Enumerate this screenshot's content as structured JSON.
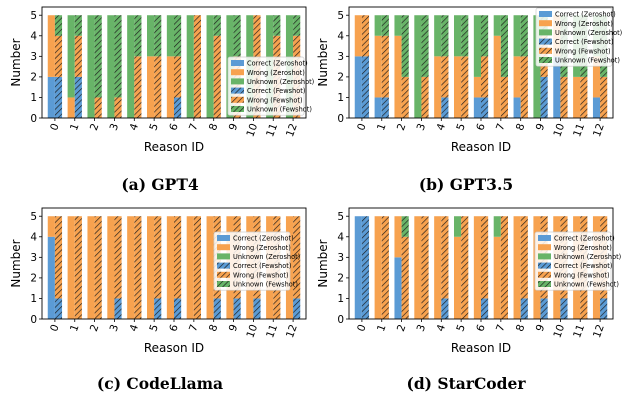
{
  "colors": {
    "correct": "#5b9bd5",
    "wrong": "#f7a24f",
    "unknown": "#68b468"
  },
  "chart_data": [
    {
      "type": "bar",
      "caption": "(a) GPT4",
      "xlabel": "Reason ID",
      "ylabel": "Number",
      "ylim": [
        0,
        5.4
      ],
      "yticks": [
        0,
        1,
        2,
        3,
        4,
        5
      ],
      "categories": [
        "0",
        "1",
        "2",
        "3",
        "4",
        "5",
        "6",
        "7",
        "8",
        "9",
        "10",
        "11",
        "12"
      ],
      "legend": [
        "Correct (Zeroshot)",
        "Wrong (Zeroshot)",
        "Unknown (Zeroshot)",
        "Correct (Fewshot)",
        "Wrong (Fewshot)",
        "Unknown (Fewshot)"
      ],
      "legend_position": "lower-right",
      "series": [
        {
          "name": "Correct (Zeroshot)",
          "values": [
            2,
            0,
            0,
            0,
            0,
            0,
            0,
            0,
            0,
            0,
            0,
            0,
            0
          ]
        },
        {
          "name": "Wrong (Zeroshot)",
          "values": [
            3,
            1,
            0,
            0,
            0,
            3,
            3,
            0,
            0,
            0,
            0,
            0,
            0
          ]
        },
        {
          "name": "Unknown (Zeroshot)",
          "values": [
            0,
            4,
            5,
            5,
            5,
            2,
            2,
            5,
            5,
            5,
            5,
            5,
            5
          ]
        },
        {
          "name": "Correct (Fewshot)",
          "values": [
            2,
            2,
            0,
            0,
            0,
            0,
            1,
            0,
            0,
            0,
            0,
            0,
            0
          ]
        },
        {
          "name": "Wrong (Fewshot)",
          "values": [
            2,
            2,
            1,
            1,
            3,
            3,
            2,
            5,
            4,
            3,
            5,
            4,
            4
          ]
        },
        {
          "name": "Unknown (Fewshot)",
          "values": [
            1,
            1,
            4,
            4,
            2,
            2,
            2,
            0,
            1,
            2,
            0,
            1,
            1
          ]
        }
      ]
    },
    {
      "type": "bar",
      "caption": "(b) GPT3.5",
      "xlabel": "Reason ID",
      "ylabel": "Number",
      "ylim": [
        0,
        5.4
      ],
      "yticks": [
        0,
        1,
        2,
        3,
        4,
        5
      ],
      "categories": [
        "0",
        "1",
        "2",
        "3",
        "4",
        "5",
        "6",
        "7",
        "8",
        "9",
        "10",
        "11",
        "12"
      ],
      "legend": [
        "Correct (Zeroshot)",
        "Wrong (Zeroshot)",
        "Unknown (Zeroshot)",
        "Correct (Fewshot)",
        "Wrong (Fewshot)",
        "Unknown (Fewshot)"
      ],
      "legend_position": "upper-right",
      "series": [
        {
          "name": "Correct (Zeroshot)",
          "values": [
            3,
            1,
            0,
            0,
            0,
            0,
            1,
            0,
            1,
            0,
            3,
            0,
            1
          ]
        },
        {
          "name": "Wrong (Zeroshot)",
          "values": [
            2,
            3,
            4,
            0,
            3,
            3,
            1,
            4,
            2,
            0,
            2,
            2,
            2
          ]
        },
        {
          "name": "Unknown (Zeroshot)",
          "values": [
            0,
            1,
            1,
            5,
            2,
            2,
            3,
            1,
            2,
            5,
            0,
            3,
            2
          ]
        },
        {
          "name": "Correct (Fewshot)",
          "values": [
            3,
            1,
            0,
            0,
            1,
            0,
            1,
            0,
            0,
            2,
            0,
            0,
            0
          ]
        },
        {
          "name": "Wrong (Fewshot)",
          "values": [
            2,
            3,
            2,
            2,
            2,
            3,
            2,
            2,
            3,
            2,
            2,
            2,
            2
          ]
        },
        {
          "name": "Unknown (Fewshot)",
          "values": [
            0,
            1,
            3,
            3,
            2,
            2,
            2,
            3,
            2,
            1,
            3,
            3,
            3
          ]
        }
      ]
    },
    {
      "type": "bar",
      "caption": "(c) CodeLlama",
      "xlabel": "Reason ID",
      "ylabel": "Number",
      "ylim": [
        0,
        5.4
      ],
      "yticks": [
        0,
        1,
        2,
        3,
        4,
        5
      ],
      "categories": [
        "0",
        "1",
        "2",
        "3",
        "4",
        "5",
        "6",
        "7",
        "8",
        "9",
        "10",
        "11",
        "12"
      ],
      "legend": [
        "Correct (Zeroshot)",
        "Wrong (Zeroshot)",
        "Unknown (Zeroshot)",
        "Correct (Fewshot)",
        "Wrong (Fewshot)",
        "Unknown (Fewshot)"
      ],
      "legend_position": "right",
      "series": [
        {
          "name": "Correct (Zeroshot)",
          "values": [
            4,
            0,
            0,
            0,
            0,
            0,
            0,
            0,
            0,
            0,
            0,
            0,
            0
          ]
        },
        {
          "name": "Wrong (Zeroshot)",
          "values": [
            1,
            5,
            5,
            5,
            5,
            5,
            5,
            5,
            5,
            5,
            5,
            5,
            5
          ]
        },
        {
          "name": "Unknown (Zeroshot)",
          "values": [
            0,
            0,
            0,
            0,
            0,
            0,
            0,
            0,
            0,
            0,
            0,
            0,
            0
          ]
        },
        {
          "name": "Correct (Fewshot)",
          "values": [
            1,
            0,
            0,
            1,
            0,
            1,
            1,
            0,
            1,
            1,
            1,
            0,
            1
          ]
        },
        {
          "name": "Wrong (Fewshot)",
          "values": [
            4,
            5,
            5,
            4,
            5,
            4,
            4,
            5,
            4,
            4,
            4,
            5,
            4
          ]
        },
        {
          "name": "Unknown (Fewshot)",
          "values": [
            0,
            0,
            0,
            0,
            0,
            0,
            0,
            0,
            0,
            0,
            0,
            0,
            0
          ]
        }
      ]
    },
    {
      "type": "bar",
      "caption": "(d) StarCoder",
      "xlabel": "Reason ID",
      "ylabel": "Number",
      "ylim": [
        0,
        5.4
      ],
      "yticks": [
        0,
        1,
        2,
        3,
        4,
        5
      ],
      "categories": [
        "0",
        "1",
        "2",
        "3",
        "4",
        "5",
        "6",
        "7",
        "8",
        "9",
        "10",
        "11",
        "12"
      ],
      "legend": [
        "Correct (Zeroshot)",
        "Wrong (Zeroshot)",
        "Unknown (Zeroshot)",
        "Correct (Fewshot)",
        "Wrong (Fewshot)",
        "Unknown (Fewshot)"
      ],
      "legend_position": "right",
      "series": [
        {
          "name": "Correct (Zeroshot)",
          "values": [
            5,
            0,
            3,
            0,
            0,
            0,
            0,
            0,
            0,
            0,
            0,
            0,
            0
          ]
        },
        {
          "name": "Wrong (Zeroshot)",
          "values": [
            0,
            5,
            2,
            5,
            5,
            4,
            5,
            4,
            5,
            5,
            5,
            5,
            5
          ]
        },
        {
          "name": "Unknown (Zeroshot)",
          "values": [
            0,
            0,
            0,
            0,
            0,
            1,
            0,
            1,
            0,
            0,
            0,
            0,
            0
          ]
        },
        {
          "name": "Correct (Fewshot)",
          "values": [
            5,
            0,
            0,
            0,
            1,
            0,
            1,
            0,
            1,
            1,
            1,
            0,
            1
          ]
        },
        {
          "name": "Wrong (Fewshot)",
          "values": [
            0,
            5,
            4,
            5,
            4,
            5,
            4,
            5,
            4,
            4,
            4,
            5,
            4
          ]
        },
        {
          "name": "Unknown (Fewshot)",
          "values": [
            0,
            0,
            1,
            0,
            0,
            0,
            0,
            0,
            0,
            0,
            0,
            0,
            0
          ]
        }
      ]
    }
  ]
}
